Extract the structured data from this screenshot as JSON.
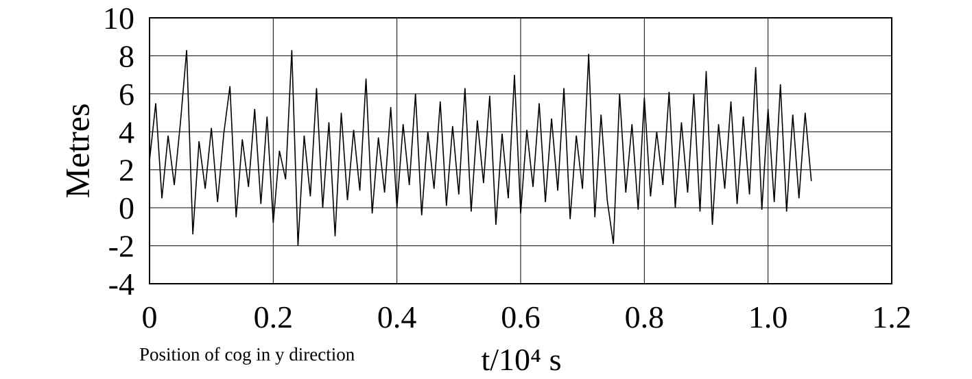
{
  "chart_data": {
    "type": "line",
    "ylabel": "Metres",
    "xlabel": "t/10⁴ s",
    "caption": "Position of cog in y direction",
    "xlim": [
      0,
      1.2
    ],
    "xticks": [
      0,
      0.2,
      0.4,
      0.6,
      0.8,
      {
        "value": 1,
        "label": "1.0"
      },
      1.2
    ],
    "ylim": [
      -4,
      10
    ],
    "yticks": [
      -4,
      -2,
      0,
      2,
      4,
      6,
      8,
      10
    ],
    "grid": true,
    "series": [
      {
        "color": "#000000",
        "x": [
          0,
          0.01,
          0.02,
          0.03,
          0.04,
          0.05,
          0.06,
          0.07,
          0.08,
          0.09,
          0.1,
          0.11,
          0.12,
          0.13,
          0.14,
          0.15,
          0.16,
          0.17,
          0.18,
          0.19,
          0.2,
          0.21,
          0.22,
          0.23,
          0.24,
          0.25,
          0.26,
          0.27,
          0.28,
          0.29,
          0.3,
          0.31,
          0.32,
          0.33,
          0.34,
          0.35,
          0.36,
          0.37,
          0.38,
          0.39,
          0.4,
          0.41,
          0.42,
          0.43,
          0.44,
          0.45,
          0.46,
          0.47,
          0.48,
          0.49,
          0.5,
          0.51,
          0.52,
          0.53,
          0.54,
          0.55,
          0.56,
          0.57,
          0.58,
          0.59,
          0.6,
          0.61,
          0.62,
          0.63,
          0.64,
          0.65,
          0.66,
          0.67,
          0.68,
          0.69,
          0.7,
          0.71,
          0.72,
          0.73,
          0.74,
          0.75,
          0.76,
          0.77,
          0.78,
          0.79,
          0.8,
          0.81,
          0.82,
          0.83,
          0.84,
          0.85,
          0.86,
          0.87,
          0.88,
          0.89,
          0.9,
          0.91,
          0.92,
          0.93,
          0.94,
          0.95,
          0.96,
          0.97,
          0.98,
          0.99,
          1.0,
          1.01,
          1.02,
          1.03,
          1.04,
          1.05,
          1.06,
          1.07
        ],
        "values": [
          2.5,
          5.5,
          0.5,
          3.8,
          1.2,
          4.5,
          8.3,
          -1.4,
          3.5,
          1.0,
          4.2,
          0.3,
          3.9,
          6.4,
          -0.5,
          3.6,
          1.1,
          5.2,
          0.2,
          4.8,
          -0.8,
          3.0,
          1.5,
          8.3,
          -2.0,
          3.8,
          0.6,
          6.3,
          0.0,
          4.5,
          -1.5,
          5.0,
          0.4,
          4.1,
          0.9,
          6.8,
          -0.3,
          3.7,
          0.8,
          5.3,
          0.0,
          4.4,
          1.2,
          6.0,
          -0.4,
          4.0,
          1.0,
          5.6,
          0.1,
          4.3,
          0.7,
          6.3,
          -0.2,
          4.6,
          1.3,
          5.9,
          -0.9,
          3.9,
          0.5,
          7.0,
          -0.3,
          4.1,
          1.1,
          5.5,
          0.3,
          4.7,
          0.9,
          6.3,
          -0.6,
          3.8,
          1.0,
          8.1,
          -0.5,
          4.9,
          0.4,
          -1.9,
          6.0,
          0.8,
          4.4,
          -0.1,
          5.8,
          0.6,
          4.0,
          1.2,
          6.1,
          0.0,
          4.5,
          0.8,
          6.0,
          -0.2,
          7.2,
          -0.9,
          4.4,
          1.0,
          5.6,
          0.2,
          4.8,
          0.7,
          7.4,
          -0.1,
          5.2,
          0.3,
          6.5,
          -0.2,
          4.9,
          0.5,
          5.0,
          1.4
        ]
      }
    ]
  }
}
